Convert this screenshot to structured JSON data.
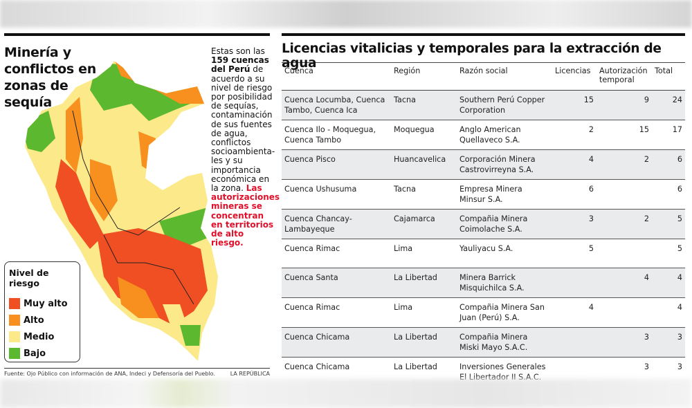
{
  "left_panel": {
    "title": "Minería y conflictos en zonas de sequía",
    "intro": {
      "p1": "Estas son las ",
      "bold": "159 cuencas del Perú",
      "p2": " de acuerdo a su nivel de riesgo por posibilidad de sequías, contaminación de sus fuentes de agua, conflictos socioambienta-les y su importancia económica en la zona. ",
      "red": "Las autorizaciones mineras se concentran en territorios de alto riesgo."
    },
    "legend": {
      "title": "Nivel de riesgo",
      "items": [
        {
          "label": "Muy alto",
          "color": "#f04e23"
        },
        {
          "label": "Alto",
          "color": "#f7901e"
        },
        {
          "label": "Medio",
          "color": "#fbe98a"
        },
        {
          "label": "Bajo",
          "color": "#5cb82e"
        }
      ]
    },
    "source": "Fuente: Ojo Público con información de ANA, Indeci y Defensoría del Pueblo.",
    "brand": "LA REPÚBLICA"
  },
  "table": {
    "title": "Licencias vitalicias y temporales para la extracción de agua",
    "headers": [
      "Cuenca",
      "Región",
      "Razón social",
      "Licencias",
      "Autorización temporal",
      "Total"
    ],
    "rows": [
      [
        "Cuenca Locumba, Cuenca Tambo, Cuenca Ica",
        "Tacna",
        "Southern Perú Copper Corporation",
        "15",
        "9",
        "24"
      ],
      [
        "Cuenca Ilo - Moquegua, Cuenca Tambo",
        "Moquegua",
        "Anglo American Quellaveco S.A.",
        "2",
        "15",
        "17"
      ],
      [
        "Cuenca Pisco",
        "Huancavelica",
        "Corporación Minera Castrovirreyna S.A.",
        "4",
        "2",
        "6"
      ],
      [
        "Cuenca Ushusuma",
        "Tacna",
        "Empresa Minera Minsur S.A.",
        "6",
        "",
        "6"
      ],
      [
        "Cuenca Chancay-Lambayeque",
        "Cajamarca",
        "Compañia Minera Coimolache S.A.",
        "3",
        "2",
        "5"
      ],
      [
        "Cuenca Rimac",
        "Lima",
        "Yauliyacu S.A.",
        "5",
        "",
        "5"
      ],
      [
        "Cuenca Santa",
        "La Libertad",
        "Minera Barrick Misquichilca  S.A.",
        "",
        "4",
        "4"
      ],
      [
        "Cuenca Rimac",
        "Lima",
        "Compañia Minera San Juan (Perú) S.A.",
        "4",
        "",
        "4"
      ],
      [
        "Cuenca Chicama",
        "La Libertad",
        "Compañia Minera Miski Mayo S.A.C.",
        "",
        "3",
        "3"
      ],
      [
        "Cuenca Chicama",
        "La Libertad",
        "Inversiones Generales El Libertador II S.A.C.",
        "",
        "3",
        "3"
      ]
    ]
  }
}
